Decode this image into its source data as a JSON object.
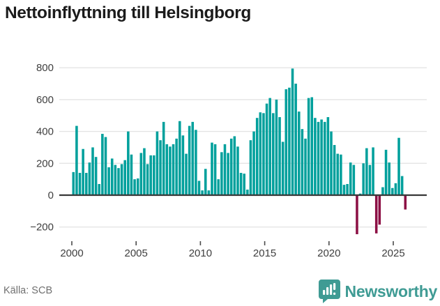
{
  "title": "Nettoinflyttning till Helsingborg",
  "source": "Källa: SCB",
  "logo": {
    "brand": "Newsworthy",
    "icon": "newsworthy-speech-bubble-bar-chart"
  },
  "chart_data": {
    "type": "bar",
    "title": "Nettoinflyttning till Helsingborg",
    "x_unit": "quarter",
    "start": "2000Q1",
    "end": "2025Q4",
    "x_tick_labels": [
      "2000",
      "2005",
      "2010",
      "2015",
      "2020",
      "2025"
    ],
    "y_ticks": [
      800,
      600,
      400,
      200,
      0,
      -200
    ],
    "ylim": [
      -260,
      850
    ],
    "grid": true,
    "legend": false,
    "bar_color": "#00a09c",
    "negative_bar_color": "#8c1045",
    "series": [
      {
        "name": "Nettoinflyttning",
        "values": [
          145,
          435,
          140,
          290,
          140,
          205,
          300,
          240,
          70,
          385,
          365,
          175,
          230,
          190,
          170,
          195,
          220,
          400,
          255,
          100,
          105,
          265,
          295,
          195,
          250,
          250,
          400,
          345,
          460,
          320,
          305,
          320,
          355,
          465,
          375,
          260,
          435,
          460,
          410,
          90,
          30,
          165,
          30,
          330,
          320,
          100,
          270,
          320,
          265,
          355,
          370,
          305,
          140,
          135,
          35,
          345,
          400,
          485,
          520,
          515,
          575,
          610,
          515,
          600,
          490,
          335,
          665,
          675,
          795,
          700,
          525,
          415,
          355,
          610,
          615,
          485,
          460,
          475,
          460,
          490,
          400,
          315,
          260,
          255,
          65,
          70,
          205,
          190,
          -245,
          10,
          200,
          295,
          190,
          300,
          -240,
          -185,
          50,
          285,
          205,
          45,
          75,
          360,
          120,
          -90
        ]
      }
    ]
  }
}
